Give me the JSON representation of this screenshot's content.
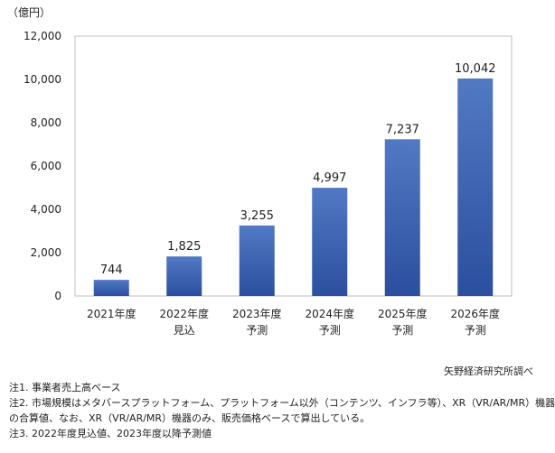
{
  "chart_data": {
    "type": "bar",
    "unit_label": "（億円）",
    "categories": [
      [
        "2021年度"
      ],
      [
        "2022年度",
        "見込"
      ],
      [
        "2023年度",
        "予測"
      ],
      [
        "2024年度",
        "予測"
      ],
      [
        "2025年度",
        "予測"
      ],
      [
        "2026年度",
        "予測"
      ]
    ],
    "values": [
      744,
      1825,
      3255,
      4997,
      7237,
      10042
    ],
    "value_labels": [
      "744",
      "1,825",
      "3,255",
      "4,997",
      "7,237",
      "10,042"
    ],
    "ylim": [
      0,
      12000
    ],
    "yticks": [
      0,
      2000,
      4000,
      6000,
      8000,
      10000,
      12000
    ],
    "ytick_labels": [
      "0",
      "2,000",
      "4,000",
      "6,000",
      "8,000",
      "10,000",
      "12,000"
    ],
    "grid": false,
    "bar_color_top": "#5279c4",
    "bar_color_bottom": "#2b4f9e"
  },
  "source": "矢野経済研究所調べ",
  "notes": [
    "注1. 事業者売上高ベース",
    "注2. 市場規模はメタバースプラットフォーム、プラットフォーム以外（コンテンツ、インフラ等）、XR（VR/AR/MR）機器",
    "の合算値、なお、XR（VR/AR/MR）機器のみ、販売価格ベースで算出している。",
    "注3. 2022年度見込値、2023年度以降予測値"
  ]
}
